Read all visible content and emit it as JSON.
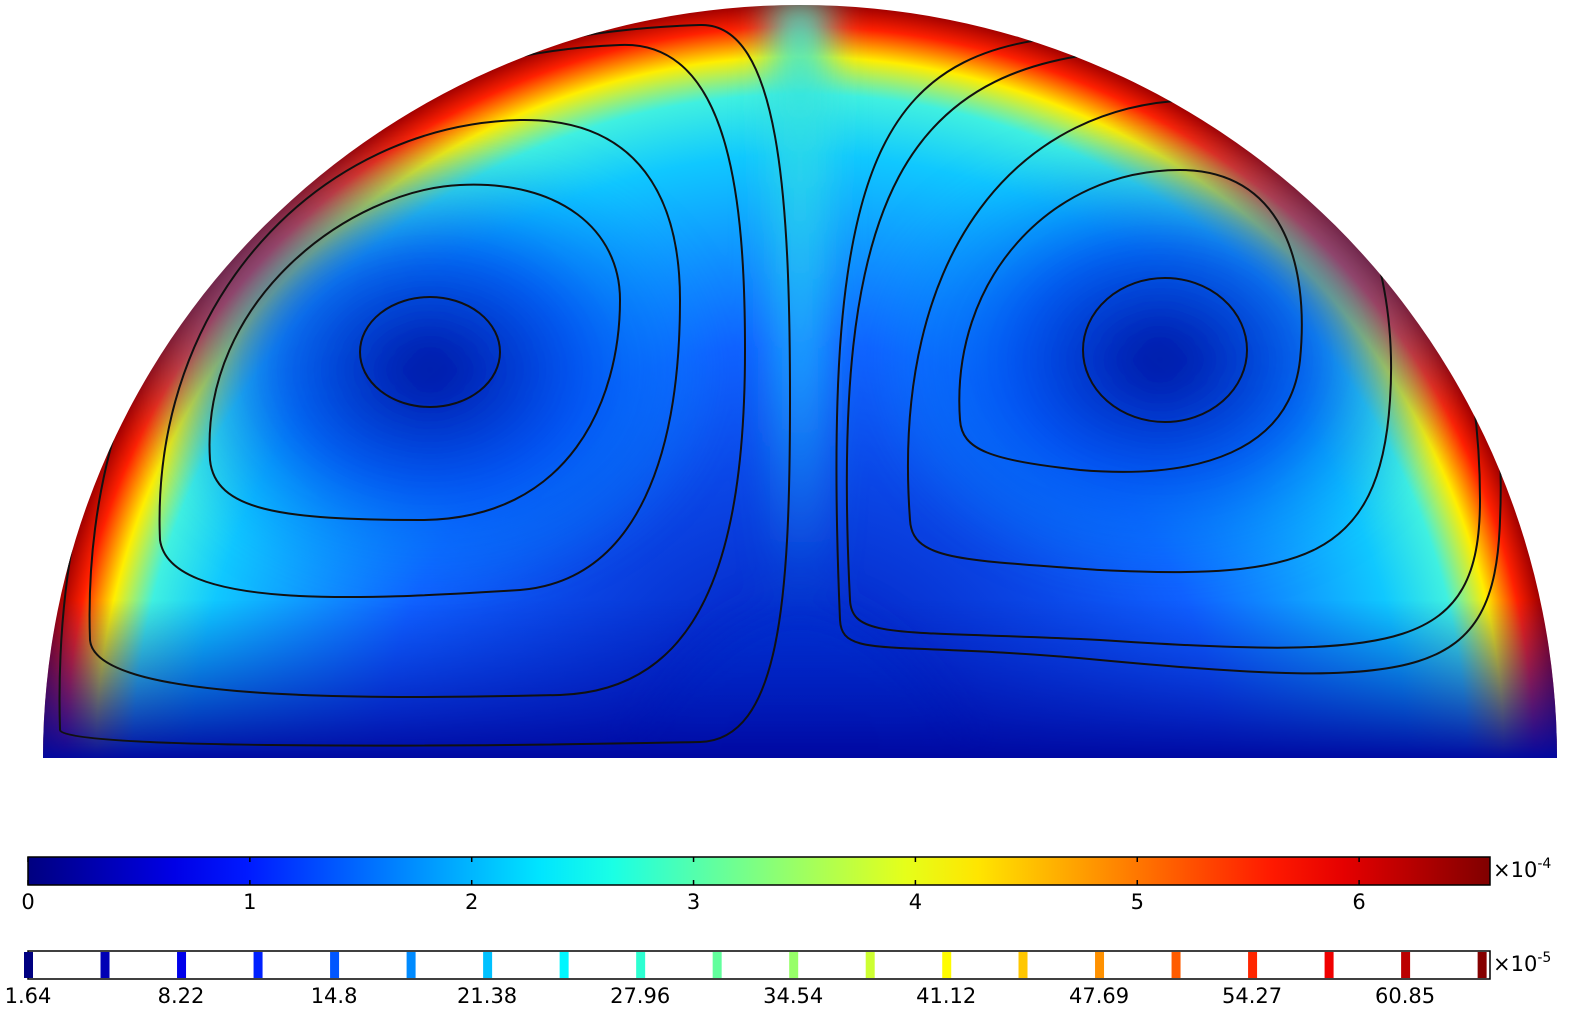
{
  "chart_data": [
    {
      "type": "colorbar",
      "xlim": [
        0,
        6.59
      ],
      "xticks": [
        0,
        1,
        2,
        3,
        4,
        5,
        6
      ],
      "multiplier": "×10",
      "exponent": "-4"
    },
    {
      "type": "levels",
      "xlim": [
        1.64,
        64.5
      ],
      "xticks": [
        1.64,
        8.22,
        14.8,
        21.38,
        27.96,
        34.54,
        41.12,
        47.69,
        54.27,
        60.85
      ],
      "levels": [
        1.64,
        4.93,
        8.22,
        11.51,
        14.8,
        18.09,
        21.38,
        24.67,
        27.96,
        31.25,
        34.54,
        37.83,
        41.12,
        44.4,
        47.69,
        50.98,
        54.27,
        57.56,
        60.85,
        64.14
      ],
      "multiplier": "×10",
      "exponent": "-5"
    }
  ]
}
